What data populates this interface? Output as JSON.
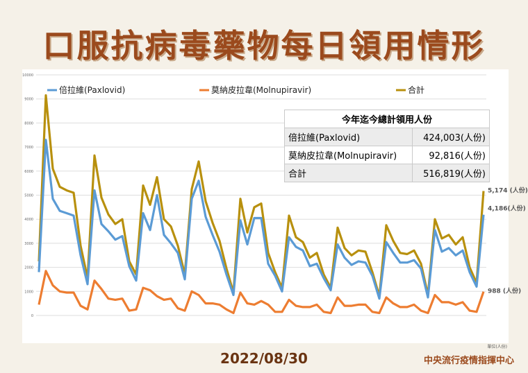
{
  "title": "口服抗病毒藥物每日領用情形",
  "footer": {
    "date": "2022/08/30",
    "org": "中央流行疫情指揮中心",
    "unit_note": "單位(人份)"
  },
  "summary_table": {
    "header": "今年迄今總計領用人份",
    "rows": [
      {
        "name": "倍拉維(Paxlovid)",
        "value": "424,003(人份)"
      },
      {
        "name": "莫納皮拉韋(Molnupiravir)",
        "value": "92,816(人份)"
      },
      {
        "name": "合計",
        "value": "516,819(人份)"
      }
    ]
  },
  "end_labels": {
    "total": "5,174 (人份)",
    "paxlovid": "4,186(人份)",
    "molnupiravir": "988 (人份)"
  },
  "colors": {
    "paxlovid": "#5b9bd5",
    "molnupiravir": "#ed7d31",
    "total": "#b8900e",
    "title": "#9b4a1d"
  },
  "chart_data": {
    "type": "line",
    "ylim": [
      0,
      10000
    ],
    "yticks": [
      "0",
      "1000",
      "2000",
      "3000",
      "4000",
      "5000",
      "6000",
      "7000",
      "8000",
      "9000",
      "10000"
    ],
    "grid": true,
    "legend_position": "top",
    "series": [
      {
        "name": "倍拉維(Paxlovid)",
        "values": [
          1800,
          7300,
          4850,
          4350,
          4250,
          4150,
          2500,
          1300,
          5200,
          3800,
          3500,
          3150,
          3300,
          2050,
          1450,
          4250,
          3550,
          5000,
          3350,
          3000,
          2600,
          1500,
          4850,
          5600,
          4100,
          3350,
          2650,
          1700,
          850,
          3950,
          2950,
          4050,
          4050,
          2150,
          1650,
          1000,
          3250,
          2850,
          2700,
          2050,
          2150,
          1550,
          1050,
          2950,
          2400,
          2100,
          2250,
          2200,
          1650,
          700,
          3050,
          2600,
          2200,
          2200,
          2300,
          1950,
          750,
          3550,
          2650,
          2800,
          2500,
          2700,
          1800,
          1200,
          4186
        ]
      },
      {
        "name": "莫納皮拉韋(Molnupiravir)",
        "values": [
          450,
          1850,
          1250,
          1000,
          950,
          950,
          400,
          250,
          1450,
          1100,
          700,
          650,
          700,
          200,
          250,
          1150,
          1050,
          800,
          650,
          700,
          300,
          200,
          1000,
          850,
          500,
          500,
          450,
          250,
          100,
          950,
          500,
          450,
          600,
          450,
          150,
          150,
          650,
          400,
          350,
          350,
          450,
          150,
          100,
          750,
          400,
          400,
          450,
          450,
          150,
          100,
          750,
          500,
          350,
          350,
          450,
          200,
          100,
          850,
          550,
          550,
          450,
          550,
          200,
          150,
          988
        ]
      },
      {
        "name": "合計",
        "values": [
          2250,
          9150,
          6100,
          5350,
          5200,
          5100,
          2900,
          1550,
          6650,
          4900,
          4200,
          3800,
          4000,
          2250,
          1700,
          5400,
          4600,
          5750,
          4000,
          3700,
          2900,
          1700,
          5250,
          6400,
          4750,
          3850,
          3100,
          1950,
          950,
          4850,
          3450,
          4500,
          4650,
          2600,
          1800,
          1150,
          4150,
          3250,
          3050,
          2400,
          2600,
          1700,
          1150,
          3650,
          2800,
          2500,
          2700,
          2650,
          1800,
          800,
          3750,
          3100,
          2600,
          2550,
          2700,
          2150,
          850,
          4000,
          3200,
          3350,
          2950,
          3250,
          2000,
          1350,
          5174
        ]
      }
    ]
  }
}
